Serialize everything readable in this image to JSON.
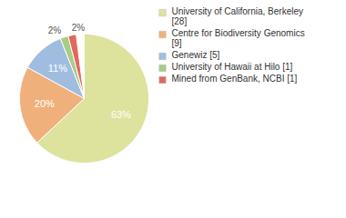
{
  "chart_data": {
    "type": "pie",
    "categories": [
      "University of California, Berkeley [28]",
      "Centre for Biodiversity Genomics [9]",
      "Genewiz [5]",
      "University of Hawaii at Hilo [1]",
      "Mined from GenBank, NCBI [1]"
    ],
    "values": [
      63,
      20,
      11,
      2,
      2
    ],
    "value_labels": [
      "63%",
      "20%",
      "11%",
      "2%",
      "2%"
    ],
    "colors": [
      "#dde39c",
      "#f0b07b",
      "#a0bde0",
      "#a8cc86",
      "#e0685c"
    ],
    "data_labels": true,
    "legend": "right"
  }
}
